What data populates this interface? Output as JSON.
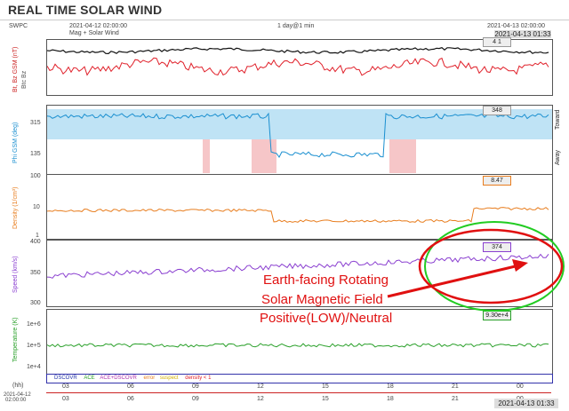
{
  "header": {
    "title": "REAL TIME SOLAR WIND",
    "source": "SWPC",
    "start_time": "2021-04-12 02:00:00",
    "end_time": "2021-04-13 02:00:00",
    "range": "1 day@1 min",
    "subtitle": "Mag + Solar Wind",
    "current_time_top": "2021-04-13 01:33"
  },
  "panels": {
    "bt": {
      "label": "Bt, Bz GSM (nT)",
      "label2": "Btc  Bz",
      "value_box": "4   1",
      "ticks": [
        "",
        "",
        ""
      ]
    },
    "phi": {
      "label": "Phi GSM (deg)",
      "right_top": "Toward",
      "right_bottom": "Away",
      "value_box": "348",
      "ticks": [
        "315",
        "135"
      ]
    },
    "density": {
      "label": "Density (1/cm³)",
      "value_box": "8.47",
      "ticks": [
        "100",
        "10",
        "1"
      ]
    },
    "speed": {
      "label": "Speed (km/s)",
      "value_box": "374",
      "ticks": [
        "400",
        "350",
        "300"
      ]
    },
    "temp": {
      "label": "Temperature (K)",
      "value_box": "9.30e+4",
      "ticks": [
        "1e+6",
        "1e+5",
        "1e+4"
      ]
    }
  },
  "legend": {
    "discovr": "DSCOVR",
    "ace": "ACE",
    "ace_discovr": "ACE+DSCOVR",
    "error": "error",
    "suspect": "suspect",
    "density": "density < 1"
  },
  "xaxis": {
    "unit": "(hh)",
    "ticks": [
      "03",
      "06",
      "09",
      "12",
      "15",
      "18",
      "21",
      "00"
    ],
    "start_label_1": "2021-04-12",
    "start_label_2": "02:00:00",
    "current_time_bottom": "2021-04-13 01:33"
  },
  "annotation": {
    "line1": "Earth-facing Rotating",
    "line2": "Solar Magnetic Field",
    "line3": "Positive(LOW)/Neutral"
  },
  "colors": {
    "bt": "#111111",
    "bz": "#e0202a",
    "phi": "#1a8fd0",
    "phi_band": "#bfe3f5",
    "phi_away": "#f6c6c8",
    "density": "#e87d1e",
    "speed": "#8a3fd0",
    "temp": "#2aa02a",
    "annot_red": "#e01010",
    "annot_green": "#22cc22"
  }
}
